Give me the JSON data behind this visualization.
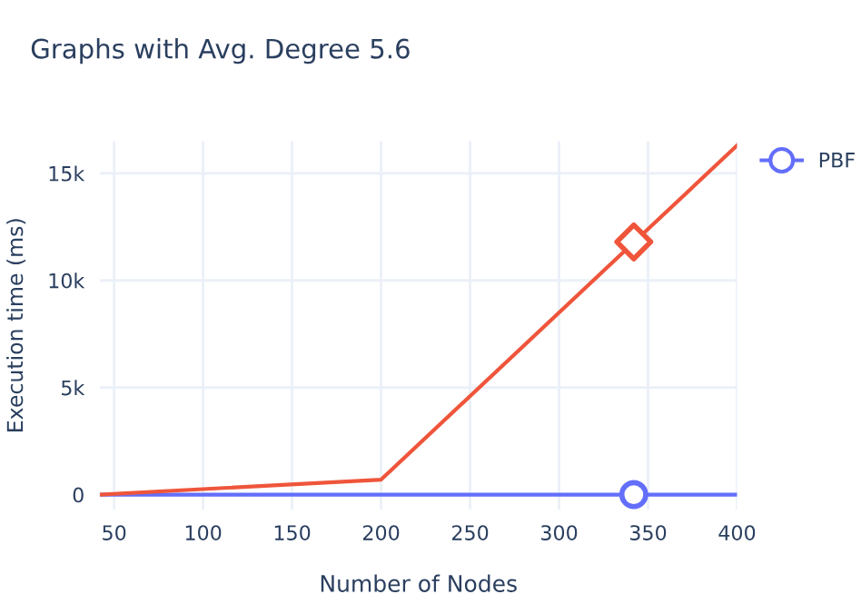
{
  "chart_data": {
    "type": "line",
    "title": "Graphs with Avg. Degree 5.6",
    "xlabel": "Number of Nodes",
    "ylabel": "Execution time (ms)",
    "xlim": [
      42,
      400
    ],
    "xticks": [
      50,
      100,
      150,
      200,
      250,
      300,
      350,
      400
    ],
    "ylim": [
      -700,
      16500
    ],
    "yticks": [
      {
        "value": 0,
        "label": "0"
      },
      {
        "value": 5000,
        "label": "5k"
      },
      {
        "value": 10000,
        "label": "10k"
      },
      {
        "value": 15000,
        "label": "15k"
      }
    ],
    "grid": true,
    "legend": "top right",
    "series": [
      {
        "name": "PBF",
        "color": "#636efa",
        "x": [
          42,
          400
        ],
        "values": [
          0,
          0
        ],
        "marker": "none"
      },
      {
        "color": "#ef553b",
        "x": [
          42,
          200,
          400
        ],
        "values": [
          0,
          700,
          16300
        ],
        "marker": "none"
      },
      {
        "color": "#636efa",
        "type": "scatter",
        "x": [
          342
        ],
        "values": [
          0
        ],
        "marker": "circle"
      },
      {
        "color": "#ef553b",
        "type": "scatter",
        "x": [
          342
        ],
        "values": [
          11800
        ],
        "marker": "diamond"
      }
    ]
  }
}
